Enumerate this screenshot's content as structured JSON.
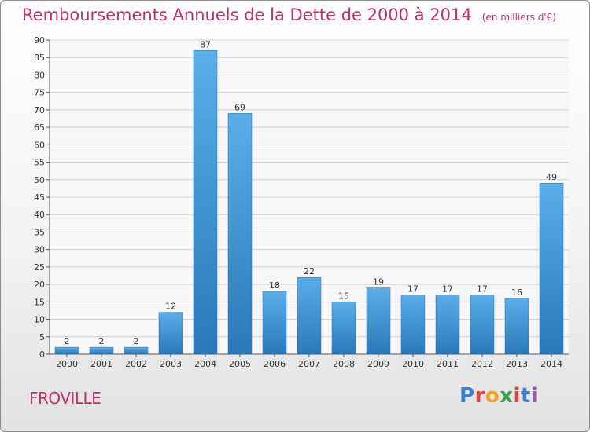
{
  "header": {
    "title": "Remboursements Annuels de la Dette de 2000 à 2014",
    "unit": "(en milliers d'€)"
  },
  "commune": "FROVILLE",
  "brand": {
    "letters": [
      "P",
      "r",
      "o",
      "x",
      "i",
      "t",
      "i"
    ],
    "colors": [
      "#3a7fd0",
      "#e0473a",
      "#f2a020",
      "#3aa54a",
      "#e0473a",
      "#3a7fd0",
      "#9b59b6"
    ]
  },
  "chart_data": {
    "type": "bar",
    "title": "Remboursements Annuels de la Dette de 2000 à 2014",
    "categories": [
      "2000",
      "2001",
      "2002",
      "2003",
      "2004",
      "2005",
      "2006",
      "2007",
      "2008",
      "2009",
      "2010",
      "2011",
      "2012",
      "2013",
      "2014"
    ],
    "values": [
      2,
      2,
      2,
      12,
      87,
      69,
      18,
      22,
      15,
      19,
      17,
      17,
      17,
      16,
      49
    ],
    "ylim": [
      0,
      90
    ],
    "yticks": [
      0,
      5,
      10,
      15,
      20,
      25,
      30,
      35,
      40,
      45,
      50,
      55,
      60,
      65,
      70,
      75,
      80,
      85,
      90
    ],
    "grid": true,
    "bar_color": "#4a9fe0",
    "grid_color": "#d0d0d0"
  }
}
